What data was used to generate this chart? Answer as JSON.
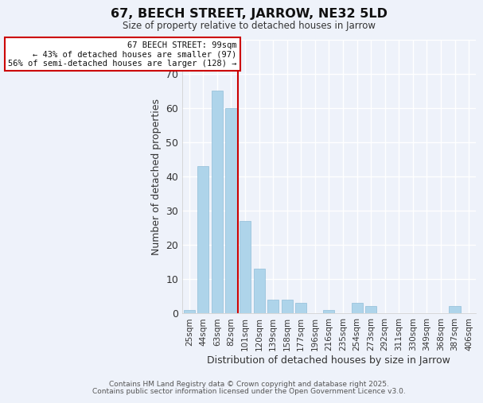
{
  "title": "67, BEECH STREET, JARROW, NE32 5LD",
  "subtitle": "Size of property relative to detached houses in Jarrow",
  "xlabel": "Distribution of detached houses by size in Jarrow",
  "ylabel": "Number of detached properties",
  "bar_color": "#aed4ea",
  "bar_edge_color": "#90bdd8",
  "bg_color": "#eef2fa",
  "grid_color": "#ffffff",
  "categories": [
    "25sqm",
    "44sqm",
    "63sqm",
    "82sqm",
    "101sqm",
    "120sqm",
    "139sqm",
    "158sqm",
    "177sqm",
    "196sqm",
    "216sqm",
    "235sqm",
    "254sqm",
    "273sqm",
    "292sqm",
    "311sqm",
    "330sqm",
    "349sqm",
    "368sqm",
    "387sqm",
    "406sqm"
  ],
  "values": [
    1,
    43,
    65,
    60,
    27,
    13,
    4,
    4,
    3,
    0,
    1,
    0,
    3,
    2,
    0,
    0,
    0,
    0,
    0,
    2,
    0
  ],
  "ylim": [
    0,
    80
  ],
  "yticks": [
    0,
    10,
    20,
    30,
    40,
    50,
    60,
    70,
    80
  ],
  "vline_index": 4,
  "vline_color": "#cc0000",
  "annotation_title": "67 BEECH STREET: 99sqm",
  "annotation_line1": "← 43% of detached houses are smaller (97)",
  "annotation_line2": "56% of semi-detached houses are larger (128) →",
  "annotation_box_color": "#ffffff",
  "annotation_box_edge": "#cc0000",
  "footer1": "Contains HM Land Registry data © Crown copyright and database right 2025.",
  "footer2": "Contains public sector information licensed under the Open Government Licence v3.0."
}
